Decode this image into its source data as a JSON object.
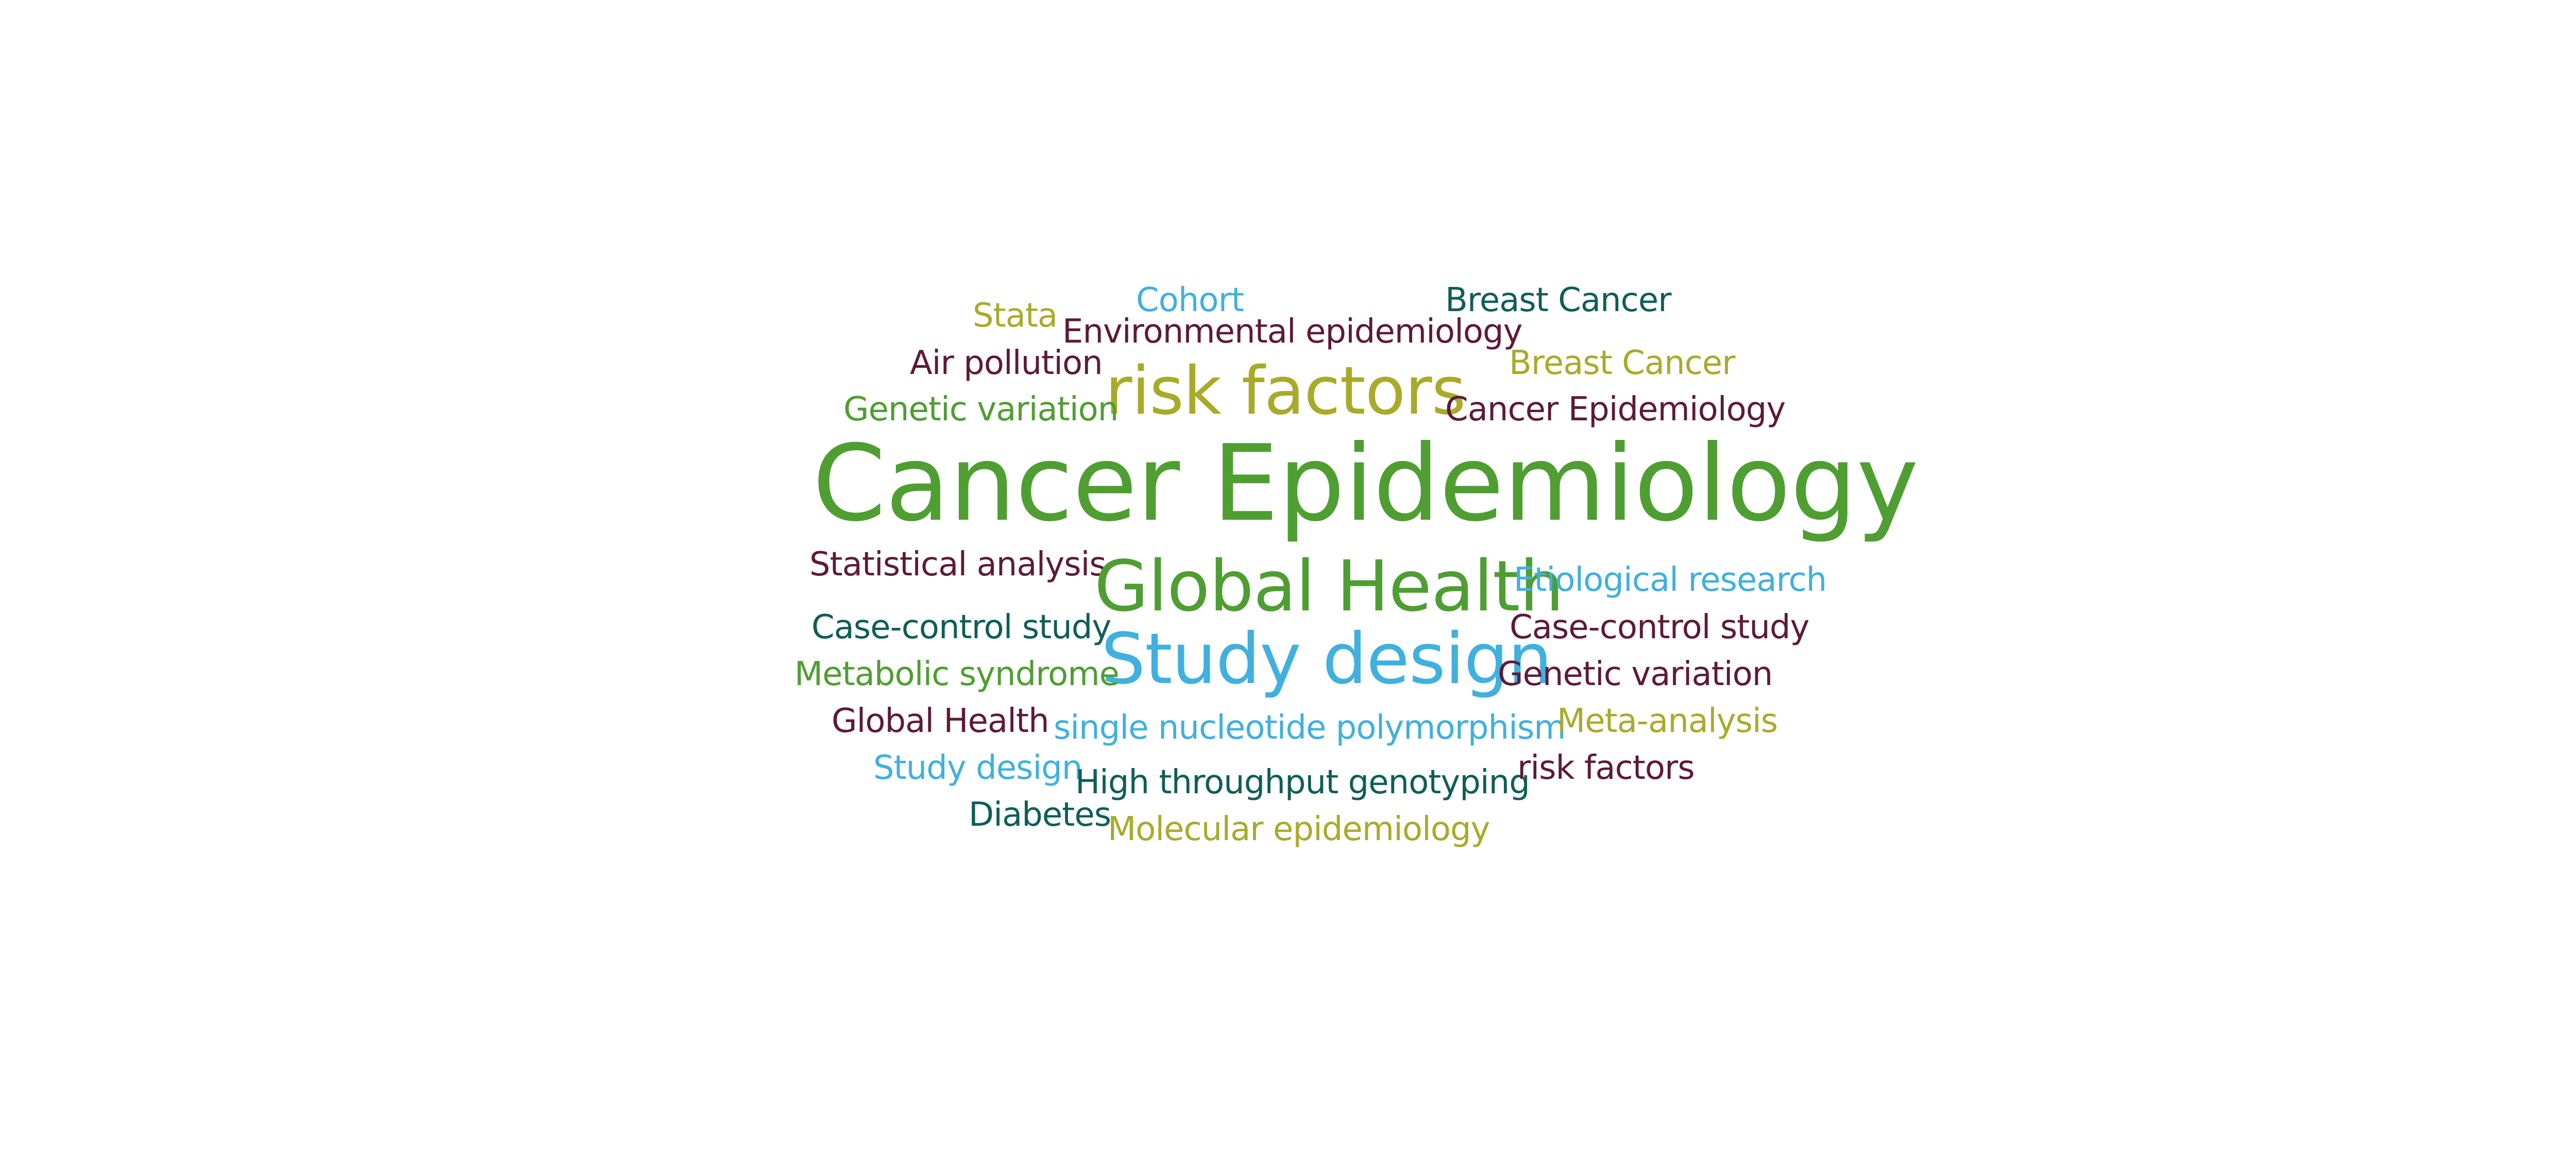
{
  "palette": {
    "green": "#4f9e32",
    "olive": "#a8ab2a",
    "blue": "#40b0de",
    "teal": "#0e5e57",
    "maroon": "#5e1a37"
  },
  "words": [
    {
      "text": "Stata",
      "color": "olive"
    },
    {
      "text": "Cohort",
      "color": "blue"
    },
    {
      "text": "Breast Cancer",
      "color": "teal"
    },
    {
      "text": "Environmental epidemiology",
      "color": "maroon"
    },
    {
      "text": "Air pollution",
      "color": "maroon"
    },
    {
      "text": "Breast Cancer",
      "color": "olive"
    },
    {
      "text": "risk factors",
      "color": "olive"
    },
    {
      "text": "Genetic variation",
      "color": "green"
    },
    {
      "text": "Cancer Epidemiology",
      "color": "maroon"
    },
    {
      "text": "Cancer Epidemiology",
      "color": "green"
    },
    {
      "text": "Statistical analysis",
      "color": "maroon"
    },
    {
      "text": "Global Health",
      "color": "green"
    },
    {
      "text": "Etiological research",
      "color": "blue"
    },
    {
      "text": "Case-control study",
      "color": "teal"
    },
    {
      "text": "Case-control study",
      "color": "maroon"
    },
    {
      "text": "Study design",
      "color": "blue"
    },
    {
      "text": "Metabolic syndrome",
      "color": "green"
    },
    {
      "text": "Genetic variation",
      "color": "maroon"
    },
    {
      "text": "Global Health",
      "color": "maroon"
    },
    {
      "text": "single nucleotide polymorphism",
      "color": "blue"
    },
    {
      "text": "Meta-analysis",
      "color": "olive"
    },
    {
      "text": "Study design",
      "color": "blue"
    },
    {
      "text": "High throughput genotyping",
      "color": "teal"
    },
    {
      "text": "risk factors",
      "color": "maroon"
    },
    {
      "text": "Diabetes",
      "color": "teal"
    },
    {
      "text": "Molecular epidemiology",
      "color": "olive"
    }
  ]
}
